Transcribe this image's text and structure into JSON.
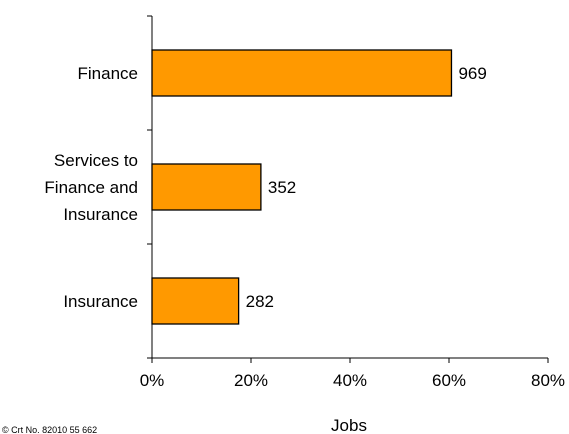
{
  "chart_data": {
    "type": "bar",
    "orientation": "horizontal",
    "categories": [
      "Finance",
      "Services to\nFinance and\nInsurance",
      "Insurance"
    ],
    "values": [
      60.5,
      22,
      17.5
    ],
    "data_labels": [
      "969",
      "352",
      "282"
    ],
    "xlim": [
      0,
      80
    ],
    "xticks": [
      0,
      20,
      40,
      60,
      80
    ],
    "xtick_labels": [
      "0%",
      "20%",
      "40%",
      "60%",
      "80%"
    ],
    "xlabel": "Jobs",
    "ylabel": "",
    "title": "",
    "grid": false,
    "legend": "none",
    "bar_color": "#FF9900",
    "bar_edge_color": "#000000"
  },
  "footnote": "© Crt  No. 82010 55 662"
}
